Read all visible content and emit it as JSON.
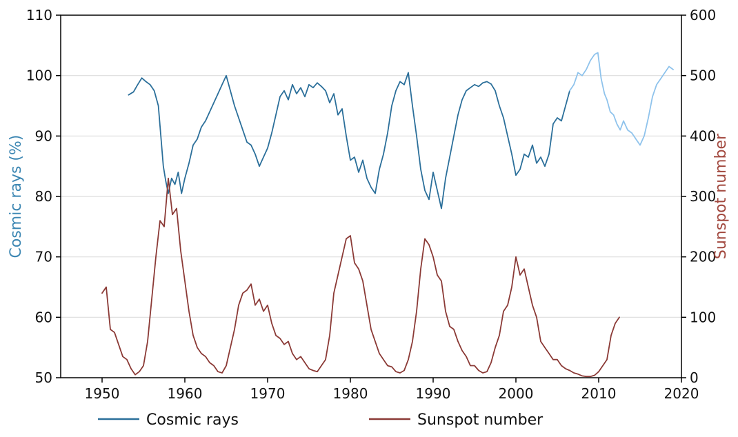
{
  "chart_data": {
    "type": "line",
    "title": "",
    "xlabel": "",
    "ylabel_left": "Cosmic rays (%)",
    "ylabel_right": "Sunspot number",
    "xlim": [
      1945,
      2020
    ],
    "ylim_left": [
      50,
      110
    ],
    "ylim_right": [
      0,
      600
    ],
    "x_ticks": [
      1950,
      1960,
      1970,
      1980,
      1990,
      2000,
      2010,
      2020
    ],
    "y_ticks_left": [
      50,
      60,
      70,
      80,
      90,
      100,
      110
    ],
    "y_ticks_right": [
      0,
      100,
      200,
      300,
      400,
      500,
      600
    ],
    "grid": "horizontal",
    "legend_position": "bottom",
    "colors": {
      "cosmic": "#2b6f9a",
      "cosmic_light": "#8fc3ec",
      "sunspot": "#8b3a36",
      "left_axis_title": "#3d87b3",
      "right_axis_title": "#a2493f",
      "grid": "#dddddd"
    },
    "series": [
      {
        "name": "Cosmic rays",
        "axis": "left",
        "color": "#2b6f9a",
        "x": [
          1953.2,
          1953.8,
          1954.3,
          1954.8,
          1955.3,
          1955.8,
          1956.3,
          1956.8,
          1957.1,
          1957.4,
          1957.7,
          1958.0,
          1958.4,
          1958.8,
          1959.2,
          1959.6,
          1960.0,
          1960.5,
          1961.0,
          1961.5,
          1962.0,
          1962.5,
          1963.0,
          1963.5,
          1964.0,
          1964.5,
          1965.0,
          1965.5,
          1966.0,
          1966.5,
          1967.0,
          1967.5,
          1968.0,
          1968.5,
          1969.0,
          1969.5,
          1970.0,
          1970.5,
          1971.0,
          1971.5,
          1972.0,
          1972.5,
          1973.0,
          1973.5,
          1974.0,
          1974.5,
          1975.0,
          1975.5,
          1976.0,
          1976.5,
          1977.0,
          1977.5,
          1978.0,
          1978.5,
          1979.0,
          1979.5,
          1980.0,
          1980.5,
          1981.0,
          1981.5,
          1982.0,
          1982.5,
          1983.0,
          1983.5,
          1984.0,
          1984.5,
          1985.0,
          1985.5,
          1986.0,
          1986.5,
          1987.0,
          1987.5,
          1988.0,
          1988.5,
          1989.0,
          1989.5,
          1990.0,
          1990.5,
          1991.0,
          1991.5,
          1992.0,
          1992.5,
          1993.0,
          1993.5,
          1994.0,
          1994.5,
          1995.0,
          1995.5,
          1996.0,
          1996.5,
          1997.0,
          1997.5,
          1998.0,
          1998.5,
          1999.0,
          1999.5,
          2000.0,
          2000.5,
          2001.0,
          2001.5,
          2002.0,
          2002.5,
          2003.0,
          2003.5,
          2004.0,
          2004.5,
          2005.0,
          2005.5,
          2006.0,
          2006.5
        ],
        "values": [
          96.8,
          97.3,
          98.5,
          99.6,
          99.0,
          98.5,
          97.5,
          95.0,
          90.0,
          85.0,
          82.5,
          80.5,
          83.0,
          82.0,
          84.0,
          80.5,
          83.0,
          85.5,
          88.5,
          89.5,
          91.5,
          92.5,
          94.0,
          95.5,
          97.0,
          98.5,
          100.0,
          97.5,
          95.0,
          93.0,
          91.0,
          89.0,
          88.5,
          87.0,
          85.0,
          86.5,
          88.0,
          90.5,
          93.5,
          96.5,
          97.5,
          96.0,
          98.5,
          97.0,
          98.0,
          96.5,
          98.5,
          98.0,
          98.8,
          98.2,
          97.5,
          95.5,
          97.0,
          93.5,
          94.5,
          90.0,
          86.0,
          86.5,
          84.0,
          86.0,
          83.0,
          81.5,
          80.5,
          84.5,
          87.0,
          90.5,
          95.0,
          97.5,
          99.0,
          98.5,
          100.5,
          95.0,
          90.0,
          84.5,
          81.0,
          79.5,
          84.0,
          81.0,
          78.0,
          83.0,
          86.5,
          90.0,
          93.5,
          96.0,
          97.5,
          98.0,
          98.5,
          98.2,
          98.8,
          99.0,
          98.6,
          97.5,
          95.0,
          93.0,
          90.0,
          87.0,
          83.5,
          84.5,
          87.0,
          86.5,
          88.5,
          85.5,
          86.5,
          85.0,
          87.0,
          92.0,
          93.0,
          92.5,
          95.0,
          97.5
        ]
      },
      {
        "name": "",
        "axis": "left",
        "color": "#8fc3ec",
        "x": [
          2006.5,
          2007.0,
          2007.5,
          2008.0,
          2008.5,
          2009.0,
          2009.5,
          2009.9,
          2010.3,
          2010.7,
          2011.0,
          2011.4,
          2011.8,
          2012.2,
          2012.6,
          2013.0,
          2013.5,
          2014.0,
          2014.5,
          2015.0,
          2015.5,
          2016.0,
          2016.5,
          2017.0,
          2017.5,
          2018.0,
          2018.5,
          2019.0
        ],
        "values": [
          97.5,
          98.5,
          100.5,
          100.0,
          101.0,
          102.5,
          103.5,
          103.8,
          99.5,
          97.0,
          96.0,
          94.0,
          93.5,
          92.0,
          91.0,
          92.5,
          91.0,
          90.5,
          89.5,
          88.5,
          90.0,
          93.0,
          96.5,
          98.5,
          99.5,
          100.5,
          101.5,
          101.0
        ]
      },
      {
        "name": "Sunspot number",
        "axis": "right",
        "color": "#8b3a36",
        "x": [
          1950.0,
          1950.5,
          1951.0,
          1951.5,
          1952.0,
          1952.5,
          1953.0,
          1953.5,
          1954.0,
          1954.5,
          1955.0,
          1955.5,
          1956.0,
          1956.5,
          1957.0,
          1957.5,
          1958.0,
          1958.5,
          1959.0,
          1959.5,
          1960.0,
          1960.5,
          1961.0,
          1961.5,
          1962.0,
          1962.5,
          1963.0,
          1963.5,
          1964.0,
          1964.5,
          1965.0,
          1965.5,
          1966.0,
          1966.5,
          1967.0,
          1967.5,
          1968.0,
          1968.5,
          1969.0,
          1969.5,
          1970.0,
          1970.5,
          1971.0,
          1971.5,
          1972.0,
          1972.5,
          1973.0,
          1973.5,
          1974.0,
          1974.5,
          1975.0,
          1975.5,
          1976.0,
          1976.5,
          1977.0,
          1977.5,
          1978.0,
          1978.5,
          1979.0,
          1979.5,
          1980.0,
          1980.5,
          1981.0,
          1981.5,
          1982.0,
          1982.5,
          1983.0,
          1983.5,
          1984.0,
          1984.5,
          1985.0,
          1985.5,
          1986.0,
          1986.5,
          1987.0,
          1987.5,
          1988.0,
          1988.5,
          1989.0,
          1989.5,
          1990.0,
          1990.5,
          1991.0,
          1991.5,
          1992.0,
          1992.5,
          1993.0,
          1993.5,
          1994.0,
          1994.5,
          1995.0,
          1995.5,
          1996.0,
          1996.5,
          1997.0,
          1997.5,
          1998.0,
          1998.5,
          1999.0,
          1999.5,
          2000.0,
          2000.5,
          2001.0,
          2001.5,
          2002.0,
          2002.5,
          2003.0,
          2003.5,
          2004.0,
          2004.5,
          2005.0,
          2005.5,
          2006.0,
          2006.5,
          2007.0,
          2007.5,
          2008.0,
          2008.5,
          2009.0,
          2009.5,
          2010.0,
          2010.5,
          2011.0,
          2011.5,
          2012.0,
          2012.5
        ],
        "values": [
          140,
          150,
          80,
          75,
          55,
          35,
          30,
          15,
          5,
          10,
          20,
          60,
          130,
          200,
          260,
          250,
          330,
          270,
          280,
          210,
          160,
          110,
          70,
          50,
          40,
          35,
          25,
          20,
          10,
          8,
          20,
          50,
          80,
          120,
          140,
          145,
          155,
          120,
          130,
          110,
          120,
          90,
          70,
          65,
          55,
          60,
          40,
          30,
          35,
          25,
          15,
          12,
          10,
          20,
          30,
          70,
          140,
          170,
          200,
          230,
          235,
          190,
          180,
          160,
          120,
          80,
          60,
          40,
          30,
          20,
          18,
          10,
          8,
          12,
          30,
          60,
          110,
          180,
          230,
          220,
          200,
          170,
          160,
          110,
          85,
          80,
          60,
          45,
          35,
          20,
          20,
          12,
          8,
          10,
          25,
          50,
          70,
          110,
          120,
          150,
          200,
          170,
          180,
          150,
          120,
          100,
          60,
          50,
          40,
          30,
          30,
          20,
          15,
          12,
          8,
          6,
          3,
          2,
          2,
          4,
          10,
          20,
          30,
          70,
          90,
          100
        ]
      }
    ],
    "legend": [
      {
        "label": "Cosmic rays",
        "color": "#2b6f9a"
      },
      {
        "label": "Sunspot number",
        "color": "#8b3a36"
      }
    ]
  }
}
